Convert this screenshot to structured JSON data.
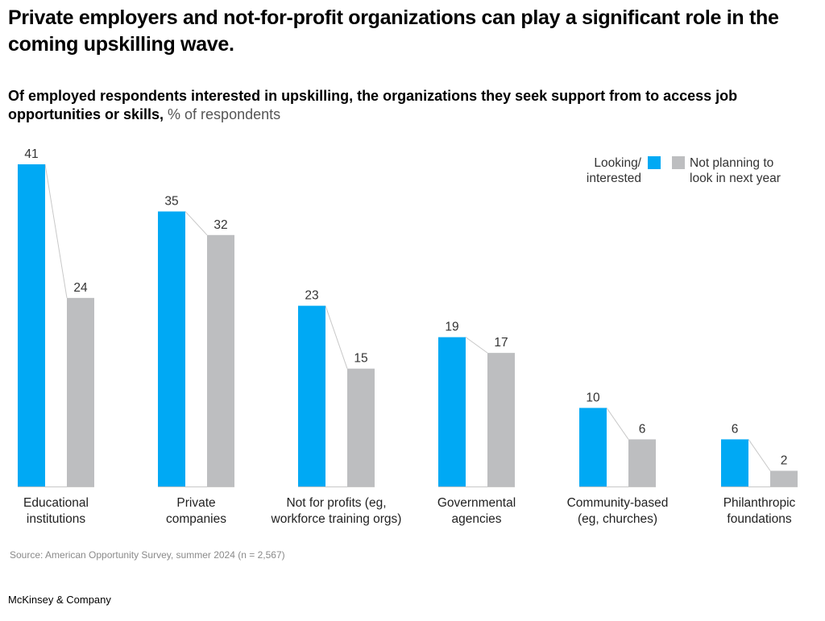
{
  "header": {
    "title": "Private employers and not-for-profit organizations can play a significant role in the coming upskilling wave.",
    "subtitle_bold": "Of employed respondents interested in upskilling, the organizations they seek support from to access job opportunities or skills,",
    "subtitle_unit": " % of respondents"
  },
  "footer": {
    "source": "Source: American Opportunity Survey, summer 2024 (n = 2,567)",
    "brand": "McKinsey & Company"
  },
  "colors": {
    "looking": "#00A9F4",
    "not_planning": "#BDBEC0",
    "connector": "#C8C8C8"
  },
  "legend": {
    "looking_line1": "Looking/",
    "looking_line2": "interested",
    "not_planning_line1": "Not planning to",
    "not_planning_line2": "look in next year"
  },
  "chart_data": {
    "type": "bar",
    "title": "Of employed respondents interested in upskilling, the organizations they seek support from to access job opportunities or skills",
    "xlabel": "",
    "ylabel": "% of respondents",
    "ylim": [
      0,
      41
    ],
    "grid": false,
    "legend_position": "top-right",
    "categories": [
      [
        "Educational",
        "institutions"
      ],
      [
        "Private",
        "companies"
      ],
      [
        "Not for profits (eg,",
        "workforce training orgs)"
      ],
      [
        "Governmental",
        "agencies"
      ],
      [
        "Community-based",
        "(eg, churches)"
      ],
      [
        "Philanthropic",
        "foundations"
      ]
    ],
    "series": [
      {
        "name": "Looking/interested",
        "values": [
          41,
          35,
          23,
          19,
          10,
          6
        ]
      },
      {
        "name": "Not planning to look in next year",
        "values": [
          24,
          32,
          15,
          17,
          6,
          2
        ]
      }
    ]
  }
}
